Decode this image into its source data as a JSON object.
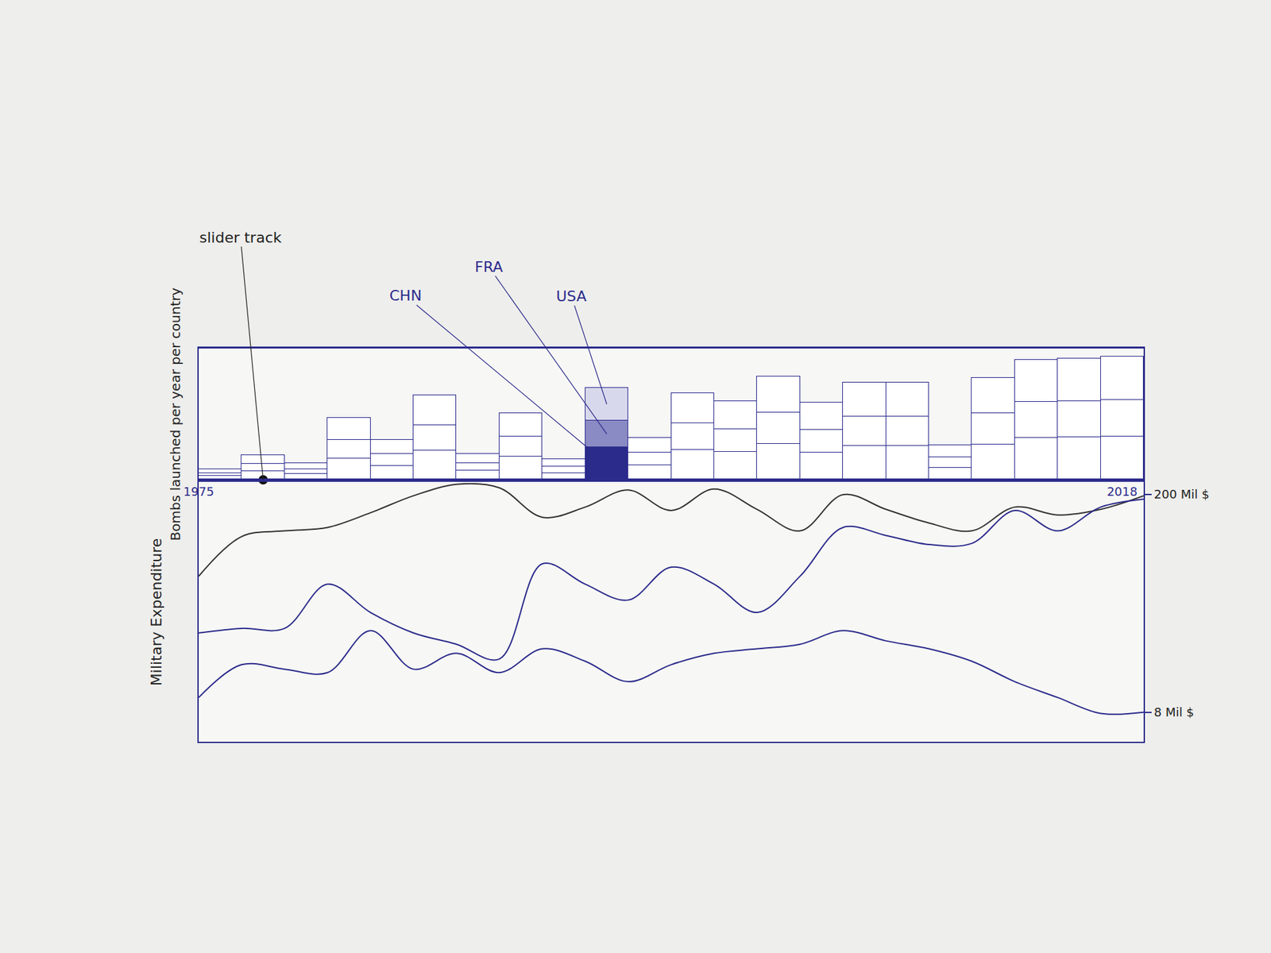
{
  "chart_data": [
    {
      "type": "bar",
      "stacked": true,
      "y_label": "Bombs launched per year per country",
      "x": [
        1976,
        1978,
        1980,
        1982,
        1984,
        1986,
        1988,
        1990,
        1992,
        1994,
        1996,
        1998,
        2000,
        2002,
        2004,
        2006,
        2008,
        2010,
        2012,
        2014,
        2016,
        2018
      ],
      "xlim": [
        1975,
        2019
      ],
      "xticks": [
        1975,
        2018
      ],
      "ylim": [
        0,
        170
      ],
      "tick_labels": "x",
      "grid": false,
      "series": [
        {
          "name": "CHN",
          "colors": [
            "#ffffff",
            "#ffffff",
            "#ffffff",
            "#ffffff",
            "#ffffff",
            "#ffffff",
            "#ffffff",
            "#ffffff",
            "#ffffff",
            "#2b2b8c",
            "#ffffff",
            "#ffffff",
            "#ffffff",
            "#ffffff",
            "#ffffff",
            "#ffffff",
            "#ffffff",
            "#ffffff",
            "#ffffff",
            "#ffffff",
            "#ffffff",
            "#ffffff"
          ],
          "values": [
            5,
            11,
            8,
            28,
            18,
            38,
            12,
            30,
            9,
            42,
            19,
            39,
            36,
            47,
            35,
            44,
            44,
            16,
            46,
            54,
            55,
            56
          ]
        },
        {
          "name": "FRA",
          "colors": [
            "#ffffff",
            "#ffffff",
            "#ffffff",
            "#ffffff",
            "#ffffff",
            "#ffffff",
            "#ffffff",
            "#ffffff",
            "#ffffff",
            "#8a8ac4",
            "#ffffff",
            "#ffffff",
            "#ffffff",
            "#ffffff",
            "#ffffff",
            "#ffffff",
            "#ffffff",
            "#ffffff",
            "#ffffff",
            "#ffffff",
            "#ffffff",
            "#ffffff"
          ],
          "values": [
            4,
            10,
            6,
            24,
            16,
            33,
            10,
            26,
            8,
            35,
            16,
            34,
            30,
            40,
            30,
            38,
            38,
            13,
            40,
            47,
            47,
            48
          ]
        },
        {
          "name": "USA",
          "colors": [
            "#ffffff",
            "#ffffff",
            "#ffffff",
            "#ffffff",
            "#ffffff",
            "#ffffff",
            "#ffffff",
            "#ffffff",
            "#ffffff",
            "#d8d8ec",
            "#ffffff",
            "#ffffff",
            "#ffffff",
            "#ffffff",
            "#ffffff",
            "#ffffff",
            "#ffffff",
            "#ffffff",
            "#ffffff",
            "#ffffff",
            "#ffffff",
            "#ffffff"
          ],
          "values": [
            5,
            11,
            8,
            28,
            18,
            39,
            12,
            30,
            10,
            42,
            19,
            39,
            36,
            47,
            35,
            44,
            44,
            16,
            46,
            54,
            55,
            56
          ]
        }
      ],
      "annotations": [
        {
          "text": "slider track",
          "x": 1978,
          "y": 0
        }
      ]
    },
    {
      "type": "line",
      "y_label": "Military Expenditure",
      "x": [
        1975,
        1977,
        1979,
        1981,
        1983,
        1985,
        1987,
        1989,
        1991,
        1993,
        1995,
        1997,
        1999,
        2001,
        2003,
        2005,
        2007,
        2009,
        2011,
        2013,
        2015,
        2017,
        2019
      ],
      "xlim": [
        1975,
        2019
      ],
      "ylim": [
        -18,
        213
      ],
      "yticks": [
        {
          "value": 8,
          "label": "8 Mil $"
        },
        {
          "value": 200,
          "label": "200 Mil $"
        }
      ],
      "tick_labels": "y",
      "grid": false,
      "series": [
        {
          "color": "#333333",
          "values": [
            128,
            163,
            168,
            171,
            184,
            199,
            209,
            206,
            180,
            189,
            204,
            186,
            205,
            187,
            168,
            200,
            187,
            175,
            168,
            189,
            182,
            187,
            199
          ]
        },
        {
          "color": "#2b2b8c",
          "values": [
            78,
            82,
            82,
            121,
            96,
            78,
            68,
            55,
            139,
            121,
            107,
            136,
            121,
            96,
            128,
            171,
            164,
            156,
            157,
            186,
            168,
            189,
            196
          ]
        },
        {
          "color": "#2b2b8c",
          "values": [
            21,
            50,
            46,
            43,
            80,
            46,
            60,
            43,
            64,
            53,
            35,
            50,
            60,
            64,
            68,
            80,
            71,
            64,
            53,
            35,
            21,
            7,
            8
          ]
        }
      ]
    }
  ]
}
